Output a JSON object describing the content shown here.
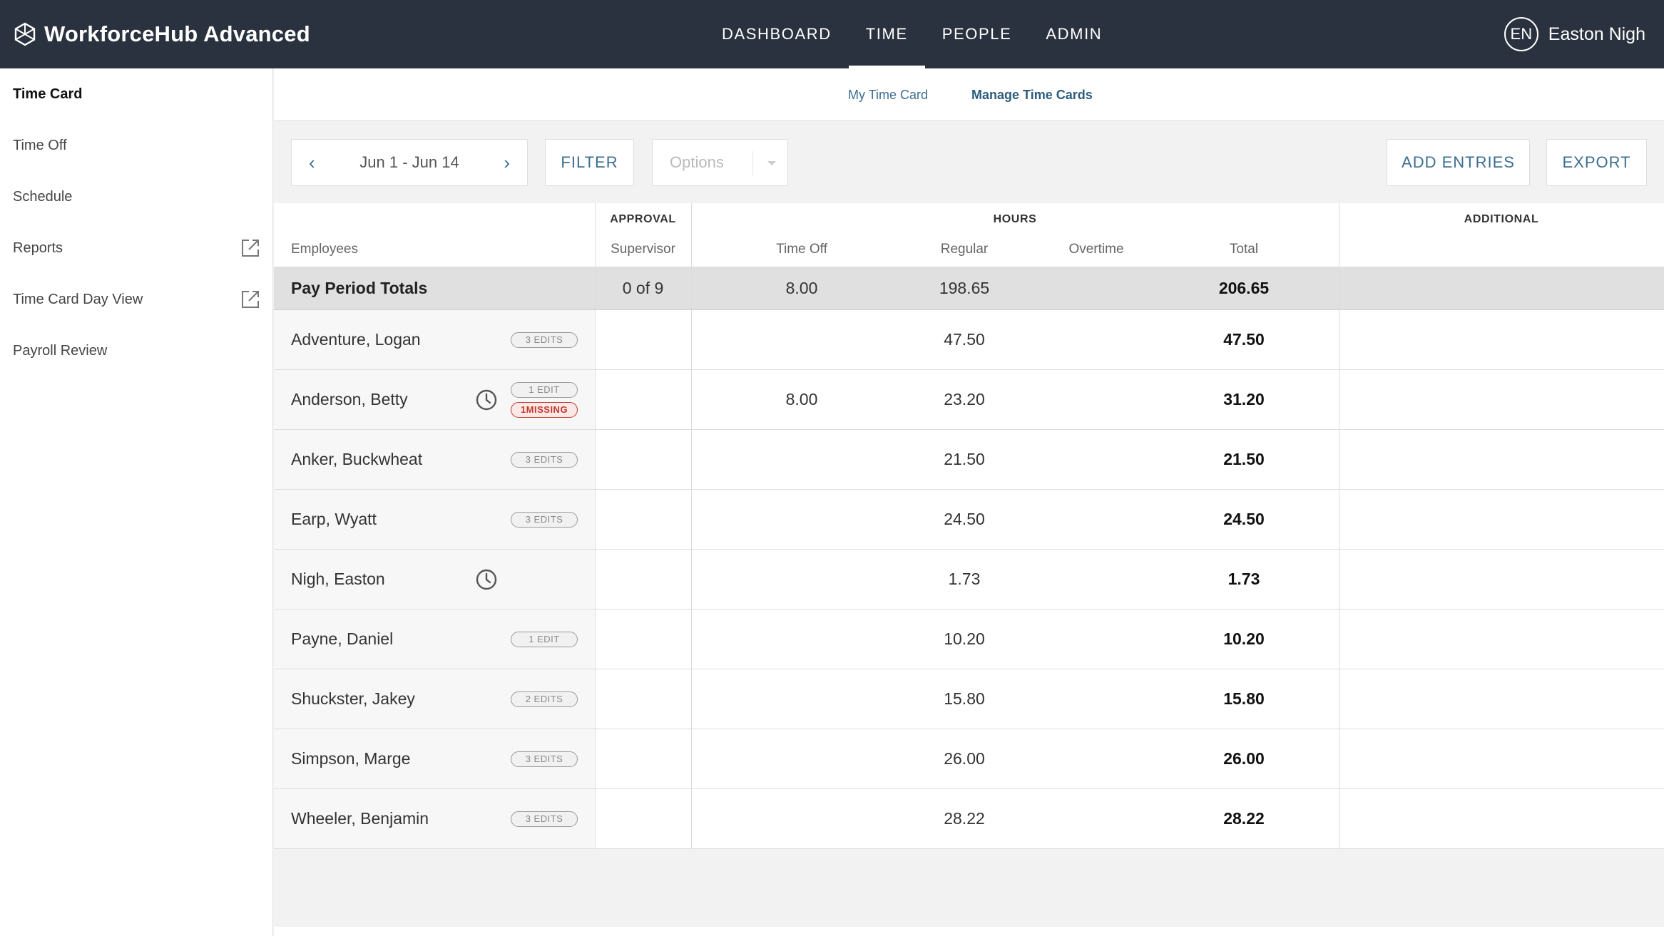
{
  "app": {
    "title": "WorkforceHub Advanced",
    "nav": [
      {
        "label": "DASHBOARD",
        "active": false
      },
      {
        "label": "TIME",
        "active": true
      },
      {
        "label": "PEOPLE",
        "active": false
      },
      {
        "label": "ADMIN",
        "active": false
      }
    ],
    "user": {
      "initials": "EN",
      "name": "Easton Nigh"
    }
  },
  "sidebar": {
    "items": [
      {
        "label": "Time Card",
        "active": true,
        "external": false
      },
      {
        "label": "Time Off",
        "active": false,
        "external": false
      },
      {
        "label": "Schedule",
        "active": false,
        "external": false
      },
      {
        "label": "Reports",
        "active": false,
        "external": true
      },
      {
        "label": "Time Card Day View",
        "active": false,
        "external": true
      },
      {
        "label": "Payroll Review",
        "active": false,
        "external": false
      }
    ]
  },
  "subnav": {
    "my_time_card": "My Time Card",
    "manage_time_cards": "Manage Time Cards"
  },
  "toolbar": {
    "date_range": "Jun 1 - Jun 14",
    "filter": "FILTER",
    "options_placeholder": "Options",
    "add_entries": "ADD ENTRIES",
    "export": "EXPORT"
  },
  "table": {
    "groups": {
      "approval": "APPROVAL",
      "hours": "HOURS",
      "additional": "ADDITIONAL"
    },
    "columns": {
      "employees": "Employees",
      "supervisor": "Supervisor",
      "time_off": "Time Off",
      "regular": "Regular",
      "overtime": "Overtime",
      "total": "Total"
    },
    "totals": {
      "label": "Pay Period Totals",
      "supervisor": "0 of 9",
      "time_off": "8.00",
      "regular": "198.65",
      "overtime": "",
      "total": "206.65"
    },
    "rows": [
      {
        "name": "Adventure, Logan",
        "clock": false,
        "badges": [
          {
            "text": "3 EDITS",
            "type": "edit"
          }
        ],
        "time_off": "",
        "regular": "47.50",
        "total": "47.50"
      },
      {
        "name": "Anderson, Betty",
        "clock": true,
        "badges": [
          {
            "text": "1 EDIT",
            "type": "edit"
          },
          {
            "text": "1MISSING",
            "type": "missing"
          }
        ],
        "time_off": "8.00",
        "regular": "23.20",
        "total": "31.20"
      },
      {
        "name": "Anker, Buckwheat",
        "clock": false,
        "badges": [
          {
            "text": "3 EDITS",
            "type": "edit"
          }
        ],
        "time_off": "",
        "regular": "21.50",
        "total": "21.50"
      },
      {
        "name": "Earp, Wyatt",
        "clock": false,
        "badges": [
          {
            "text": "3 EDITS",
            "type": "edit"
          }
        ],
        "time_off": "",
        "regular": "24.50",
        "total": "24.50"
      },
      {
        "name": "Nigh, Easton",
        "clock": true,
        "badges": [],
        "time_off": "",
        "regular": "1.73",
        "total": "1.73"
      },
      {
        "name": "Payne, Daniel",
        "clock": false,
        "badges": [
          {
            "text": "1 EDIT",
            "type": "edit"
          }
        ],
        "time_off": "",
        "regular": "10.20",
        "total": "10.20"
      },
      {
        "name": "Shuckster, Jakey",
        "clock": false,
        "badges": [
          {
            "text": "2 EDITS",
            "type": "edit"
          }
        ],
        "time_off": "",
        "regular": "15.80",
        "total": "15.80"
      },
      {
        "name": "Simpson, Marge",
        "clock": false,
        "badges": [
          {
            "text": "3 EDITS",
            "type": "edit"
          }
        ],
        "time_off": "",
        "regular": "26.00",
        "total": "26.00"
      },
      {
        "name": "Wheeler, Benjamin",
        "clock": false,
        "badges": [
          {
            "text": "3 EDITS",
            "type": "edit"
          }
        ],
        "time_off": "",
        "regular": "28.22",
        "total": "28.22"
      }
    ]
  }
}
